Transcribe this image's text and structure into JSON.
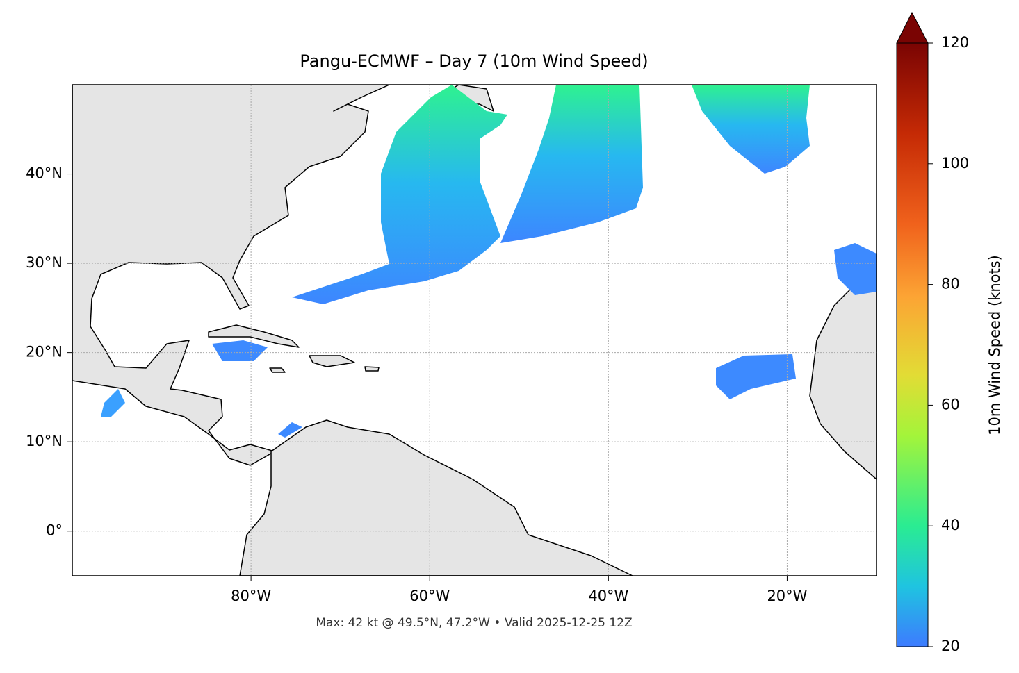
{
  "chart_data": {
    "type": "map",
    "title": "Pangu-ECMWF – Day 7 (10m Wind Speed)",
    "footer": "Max: 42 kt @ 49.5°N, 47.2°W • Valid 2025-12-25 12Z",
    "xlim": [
      -100,
      -10
    ],
    "ylim": [
      -5,
      50
    ],
    "xticks": [
      {
        "value": -80,
        "label": "80°W"
      },
      {
        "value": -60,
        "label": "60°W"
      },
      {
        "value": -40,
        "label": "40°W"
      },
      {
        "value": -20,
        "label": "20°W"
      }
    ],
    "yticks": [
      {
        "value": 0,
        "label": "0°"
      },
      {
        "value": 10,
        "label": "10°N"
      },
      {
        "value": 20,
        "label": "20°N"
      },
      {
        "value": 30,
        "label": "30°N"
      },
      {
        "value": 40,
        "label": "40°N"
      }
    ],
    "grid": true,
    "colorbar": {
      "label": "10m Wind Speed (knots)",
      "lim": [
        20,
        120
      ],
      "ticks": [
        20,
        40,
        60,
        80,
        100,
        120
      ]
    }
  }
}
